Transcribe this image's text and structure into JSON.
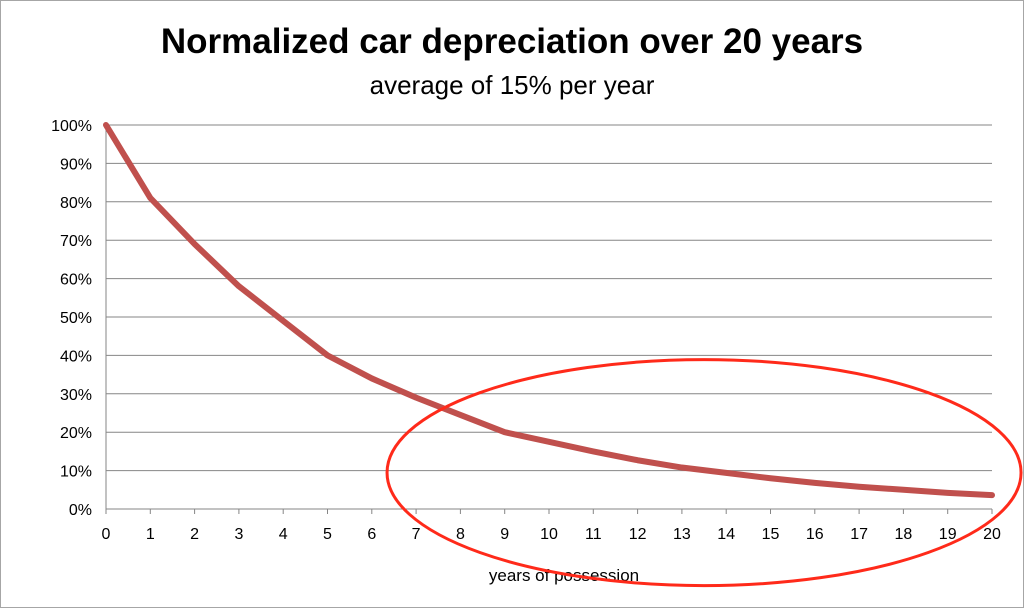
{
  "chart_data": {
    "type": "line",
    "title": "Normalized car depreciation over 20 years",
    "subtitle": "average of 15% per year",
    "xlabel": "years of possession",
    "ylabel": "",
    "x": [
      0,
      1,
      2,
      3,
      4,
      5,
      6,
      7,
      8,
      9,
      10,
      11,
      12,
      13,
      14,
      15,
      16,
      17,
      18,
      19,
      20
    ],
    "series": [
      {
        "values": [
          100,
          81,
          69,
          58,
          49,
          40,
          34,
          29,
          24.5,
          20,
          17.5,
          15,
          12.7,
          10.8,
          9.4,
          8,
          6.8,
          5.8,
          5,
          4.2,
          3.6
        ],
        "color": "#c0504d"
      }
    ],
    "ylim": [
      0,
      100
    ],
    "xlim": [
      0,
      20
    ],
    "y_ticks": [
      "0%",
      "10%",
      "20%",
      "30%",
      "40%",
      "50%",
      "60%",
      "70%",
      "80%",
      "90%",
      "100%"
    ],
    "x_ticks": [
      "0",
      "1",
      "2",
      "3",
      "4",
      "5",
      "6",
      "7",
      "8",
      "9",
      "10",
      "11",
      "12",
      "13",
      "14",
      "15",
      "16",
      "17",
      "18",
      "19",
      "20"
    ],
    "grid": true,
    "gridline_color": "#868686",
    "annotation": {
      "shape": "ellipse",
      "color": "#ff2a1a",
      "x_center": 13.5,
      "y_center": 10
    }
  }
}
